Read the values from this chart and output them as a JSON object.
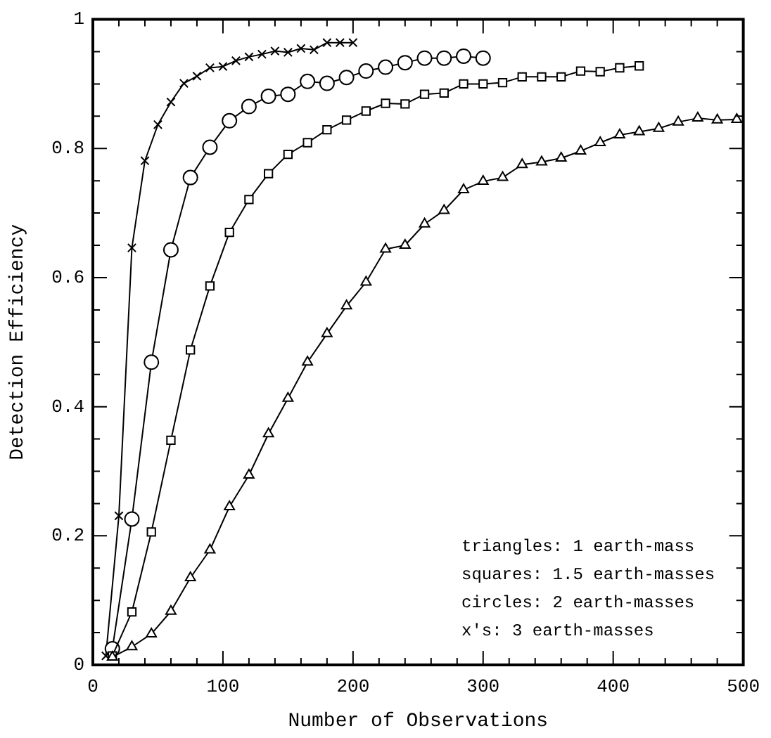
{
  "chart_data": {
    "type": "line",
    "xlabel": "Number of Observations",
    "ylabel": "Detection Efficiency",
    "xlim": [
      0,
      500
    ],
    "ylim": [
      0,
      1
    ],
    "xticks": [
      0,
      {
        "value": 20,
        "label": null
      },
      {
        "value": 40,
        "label": null
      },
      {
        "value": 60,
        "label": null
      },
      {
        "value": 80,
        "label": null
      },
      100,
      {
        "value": 120,
        "label": null
      },
      {
        "value": 140,
        "label": null
      },
      {
        "value": 160,
        "label": null
      },
      {
        "value": 180,
        "label": null
      },
      200,
      {
        "value": 220,
        "label": null
      },
      {
        "value": 240,
        "label": null
      },
      {
        "value": 260,
        "label": null
      },
      {
        "value": 280,
        "label": null
      },
      300,
      {
        "value": 320,
        "label": null
      },
      {
        "value": 340,
        "label": null
      },
      {
        "value": 360,
        "label": null
      },
      {
        "value": 380,
        "label": null
      },
      400,
      {
        "value": 420,
        "label": null
      },
      {
        "value": 440,
        "label": null
      },
      {
        "value": 460,
        "label": null
      },
      {
        "value": 480,
        "label": null
      },
      500
    ],
    "yticks": [
      0,
      {
        "value": 0.05,
        "label": null
      },
      {
        "value": 0.1,
        "label": null
      },
      {
        "value": 0.15,
        "label": null
      },
      0.2,
      {
        "value": 0.25,
        "label": null
      },
      {
        "value": 0.3,
        "label": null
      },
      {
        "value": 0.35,
        "label": null
      },
      0.4,
      {
        "value": 0.45,
        "label": null
      },
      {
        "value": 0.5,
        "label": null
      },
      {
        "value": 0.55,
        "label": null
      },
      0.6,
      {
        "value": 0.65,
        "label": null
      },
      {
        "value": 0.7,
        "label": null
      },
      {
        "value": 0.75,
        "label": null
      },
      0.8,
      {
        "value": 0.85,
        "label": null
      },
      {
        "value": 0.9,
        "label": null
      },
      {
        "value": 0.95,
        "label": null
      },
      1
    ],
    "grid": false,
    "legend": false,
    "line_style": "solid",
    "annotations": [
      "triangles: 1 earth-mass",
      "squares: 1.5 earth-masses",
      "circles: 2 earth-masses",
      "x's: 3 earth-masses"
    ],
    "series": [
      {
        "color": "#000000",
        "marker": "triangle",
        "x": [
          15,
          30,
          45,
          60,
          75,
          90,
          105,
          120,
          135,
          150,
          165,
          180,
          195,
          210,
          225,
          240,
          255,
          270,
          285,
          300,
          315,
          330,
          345,
          360,
          375,
          390,
          405,
          420,
          435,
          450,
          465,
          480,
          495
        ],
        "values": [
          0.012,
          0.028,
          0.048,
          0.083,
          0.135,
          0.178,
          0.245,
          0.294,
          0.358,
          0.413,
          0.469,
          0.513,
          0.556,
          0.593,
          0.644,
          0.65,
          0.683,
          0.704,
          0.736,
          0.749,
          0.755,
          0.775,
          0.779,
          0.785,
          0.796,
          0.809,
          0.821,
          0.826,
          0.831,
          0.841,
          0.847,
          0.844,
          0.845
        ]
      },
      {
        "color": "#000000",
        "marker": "square",
        "x": [
          15,
          30,
          45,
          60,
          75,
          90,
          105,
          120,
          135,
          150,
          165,
          180,
          195,
          210,
          225,
          240,
          255,
          270,
          285,
          300,
          315,
          330,
          345,
          360,
          375,
          390,
          405,
          420
        ],
        "values": [
          0.014,
          0.082,
          0.206,
          0.348,
          0.488,
          0.587,
          0.67,
          0.721,
          0.761,
          0.791,
          0.809,
          0.829,
          0.844,
          0.858,
          0.87,
          0.869,
          0.884,
          0.886,
          0.9,
          0.9,
          0.902,
          0.911,
          0.911,
          0.911,
          0.92,
          0.919,
          0.925,
          0.928
        ]
      },
      {
        "color": "#000000",
        "marker": "circle",
        "x": [
          15,
          30,
          45,
          60,
          75,
          90,
          105,
          120,
          135,
          150,
          165,
          180,
          195,
          210,
          225,
          240,
          255,
          270,
          285,
          300
        ],
        "values": [
          0.025,
          0.226,
          0.469,
          0.643,
          0.755,
          0.802,
          0.843,
          0.865,
          0.881,
          0.884,
          0.904,
          0.901,
          0.91,
          0.92,
          0.926,
          0.933,
          0.94,
          0.94,
          0.943,
          0.94
        ]
      },
      {
        "color": "#000000",
        "marker": "cross",
        "x": [
          10,
          20,
          30,
          40,
          50,
          60,
          70,
          80,
          90,
          100,
          110,
          120,
          130,
          140,
          150,
          160,
          170,
          180,
          190,
          200
        ],
        "values": [
          0.014,
          0.231,
          0.646,
          0.781,
          0.837,
          0.872,
          0.901,
          0.912,
          0.925,
          0.927,
          0.936,
          0.942,
          0.946,
          0.951,
          0.949,
          0.955,
          0.953,
          0.964,
          0.964,
          0.964
        ]
      }
    ]
  }
}
